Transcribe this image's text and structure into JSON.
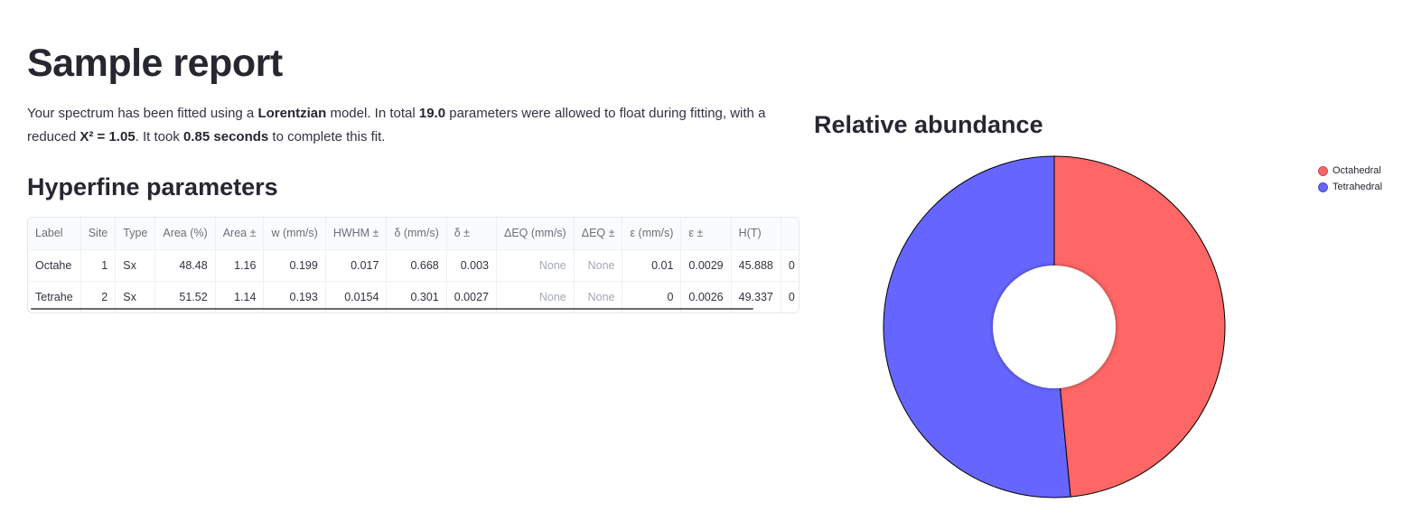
{
  "report": {
    "title": "Sample report",
    "intro": {
      "p1": "Your spectrum has been fitted using a ",
      "model": "Lorentzian",
      "p2": " model. In total ",
      "params": "19.0",
      "p3": " parameters were allowed to float during fitting, with a reduced ",
      "chi": "X² = 1.05",
      "p4": ". It took ",
      "time": "0.85 seconds",
      "p5": " to complete this fit."
    }
  },
  "hyperfine": {
    "title": "Hyperfine parameters",
    "columns": [
      "Label",
      "Site",
      "Type",
      "Area (%)",
      "Area ±",
      "w (mm/s)",
      "HWHM ±",
      "δ (mm/s)",
      "δ ±",
      "ΔEQ (mm/s)",
      "ΔEQ ±",
      "ε (mm/s)",
      "ε ±",
      "H(T)",
      ""
    ],
    "rows": [
      [
        "Octahe",
        "1",
        "Sx",
        "48.48",
        "1.16",
        "0.199",
        "0.017",
        "0.668",
        "0.003",
        "None",
        "None",
        "0.01",
        "0.0029",
        "45.888",
        "0"
      ],
      [
        "Tetrahe",
        "2",
        "Sx",
        "51.52",
        "1.14",
        "0.193",
        "0.0154",
        "0.301",
        "0.0027",
        "None",
        "None",
        "0",
        "0.0026",
        "49.337",
        "0"
      ]
    ]
  },
  "abundance": {
    "title": "Relative abundance"
  },
  "chart_data": {
    "type": "pie",
    "categories": [
      "Octahedral",
      "Tetrahedral"
    ],
    "values": [
      48.48,
      51.52
    ],
    "colors": [
      "#ff6666",
      "#6666ff"
    ],
    "legend_position": "top-right",
    "donut": true
  }
}
